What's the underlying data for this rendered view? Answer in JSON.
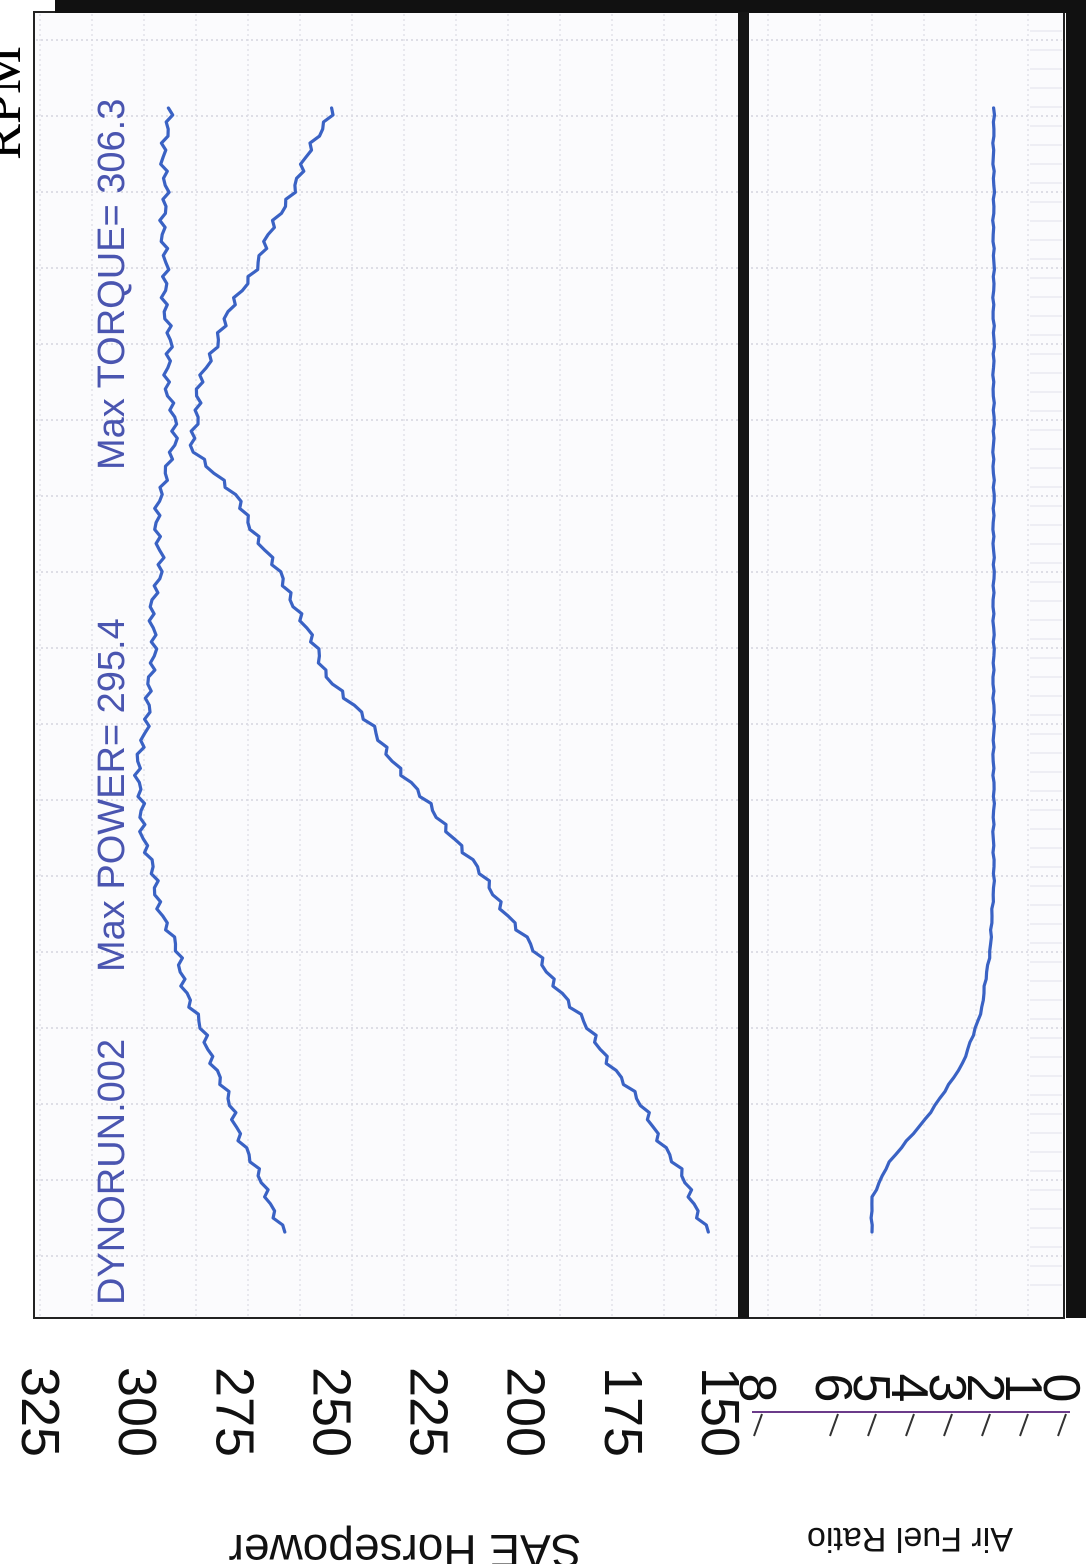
{
  "chart_data": {
    "type": "line",
    "orientation": "rotated-90-clockwise",
    "run_name": "DYNORUN.002",
    "annotations": {
      "max_power": "Max POWER= 295.4",
      "max_torque": "Max TORQUE= 306.3"
    },
    "corner_text": "RPM",
    "colors": {
      "series": "#3a62c4",
      "text_blue": "#4a55b0"
    },
    "grid": true,
    "upper_panel": {
      "ylabel": "SAE Horsepower",
      "ylim": [
        150,
        325
      ],
      "ticks": [
        "325",
        "300",
        "275",
        "250",
        "225",
        "200",
        "175",
        "150"
      ],
      "x": [
        0.0,
        0.05,
        0.1,
        0.15,
        0.2,
        0.25,
        0.3,
        0.35,
        0.4,
        0.45,
        0.5,
        0.55,
        0.6,
        0.65,
        0.7,
        0.75,
        0.8,
        0.85,
        0.9,
        0.95,
        1.0
      ],
      "series": [
        {
          "values": [
            262,
            269,
            275,
            280,
            286,
            290,
            295,
            298,
            300,
            298,
            296,
            296,
            294,
            295,
            290,
            292,
            292,
            293,
            293,
            293,
            292
          ]
        },
        {
          "values": [
            153,
            160,
            168,
            178,
            188,
            198,
            208,
            218,
            230,
            240,
            252,
            258,
            266,
            274,
            286,
            284,
            279,
            271,
            264,
            257,
            250
          ]
        }
      ]
    },
    "lower_panel": {
      "ylabel": "Air Fuel Ratio",
      "ticks": [
        "8",
        "6",
        "5",
        "4",
        "3",
        "2",
        "1",
        "0"
      ],
      "x": [
        0.0,
        0.03,
        0.06,
        0.1,
        0.15,
        0.2,
        0.25,
        0.3,
        0.4,
        0.5,
        0.6,
        0.7,
        0.8,
        0.9,
        1.0
      ],
      "values": [
        5.0,
        5.0,
        4.6,
        3.6,
        2.6,
        2.1,
        1.9,
        1.8,
        1.8,
        1.8,
        1.8,
        1.8,
        1.8,
        1.8,
        1.8
      ]
    }
  }
}
